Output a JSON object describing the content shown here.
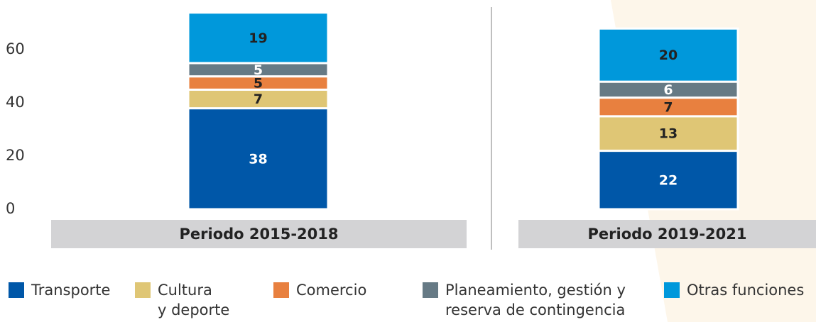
{
  "chart_data": {
    "type": "stacked_bar",
    "categories": [
      "Periodo 2015-2018",
      "Periodo 2019-2021"
    ],
    "series": [
      {
        "name": "Transporte",
        "color": "#0057a8",
        "label_color": "#ffffff",
        "values": [
          38,
          22
        ]
      },
      {
        "name": "Cultura\ny deporte",
        "color": "#dfc675",
        "label_color": "#222222",
        "values": [
          7,
          13
        ]
      },
      {
        "name": "Comercio",
        "color": "#e8803f",
        "label_color": "#222222",
        "values": [
          5,
          7
        ]
      },
      {
        "name": "Planeamiento, gestión y\nreserva de contingencia",
        "color": "#667a85",
        "label_color": "#ffffff",
        "values": [
          5,
          6
        ]
      },
      {
        "name": "Otras funciones",
        "color": "#0098db",
        "label_color": "#222222",
        "values": [
          19,
          20
        ]
      }
    ],
    "ylim": [
      0,
      75
    ],
    "yticks": [
      0,
      20,
      40,
      60
    ]
  }
}
